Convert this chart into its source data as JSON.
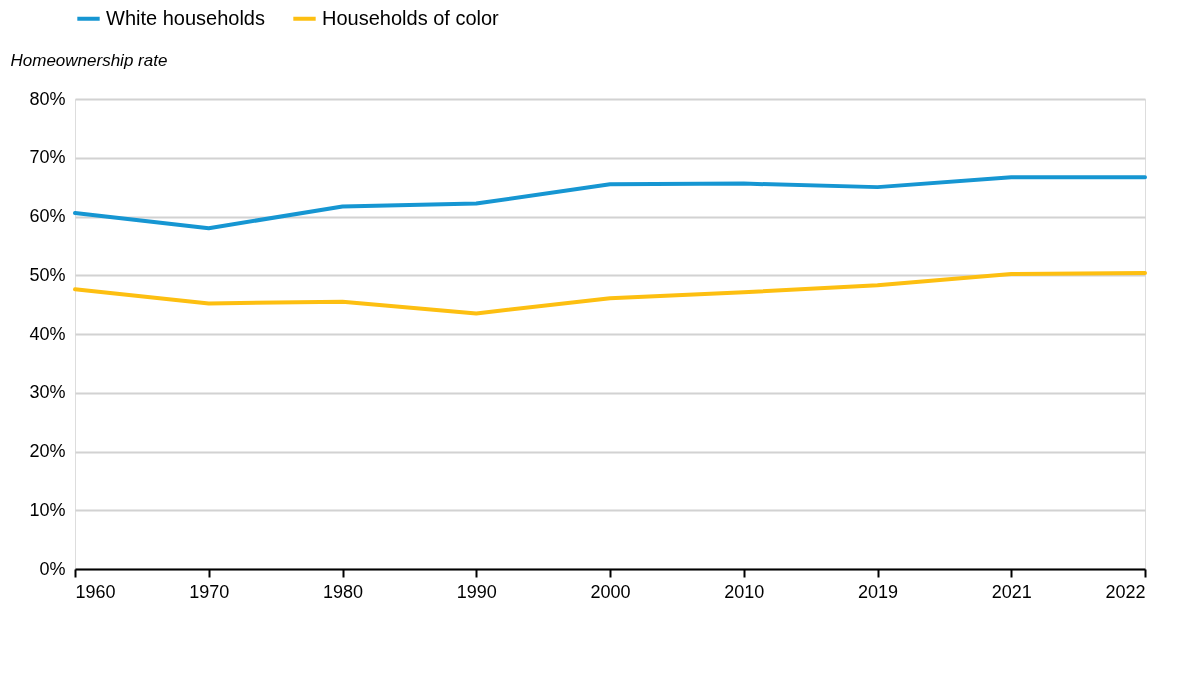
{
  "chart_data": {
    "type": "line",
    "ylabel": "Homeownership rate",
    "categories": [
      "1960",
      "1970",
      "1980",
      "1990",
      "2000",
      "2010",
      "2019",
      "2021",
      "2022"
    ],
    "series": [
      {
        "name": "White households",
        "color": "#1696d2",
        "values": [
          60.6,
          58.0,
          61.7,
          62.2,
          65.5,
          65.6,
          65.0,
          66.7,
          66.7
        ]
      },
      {
        "name": "Households of color",
        "color": "#fdbf11",
        "values": [
          47.6,
          45.2,
          45.5,
          43.5,
          46.1,
          47.1,
          48.3,
          50.2,
          50.4
        ]
      }
    ],
    "ylim": [
      0,
      80
    ],
    "yticks": [
      {
        "value": 0,
        "label": "0%"
      },
      {
        "value": 10,
        "label": "10%"
      },
      {
        "value": 20,
        "label": "20%"
      },
      {
        "value": 30,
        "label": "30%"
      },
      {
        "value": 40,
        "label": "40%"
      },
      {
        "value": 50,
        "label": "50%"
      },
      {
        "value": 60,
        "label": "60%"
      },
      {
        "value": 70,
        "label": "70%"
      },
      {
        "value": 80,
        "label": "80%"
      }
    ],
    "grid": "y",
    "legend": "top left",
    "marker": "none",
    "line_style": "solid"
  }
}
